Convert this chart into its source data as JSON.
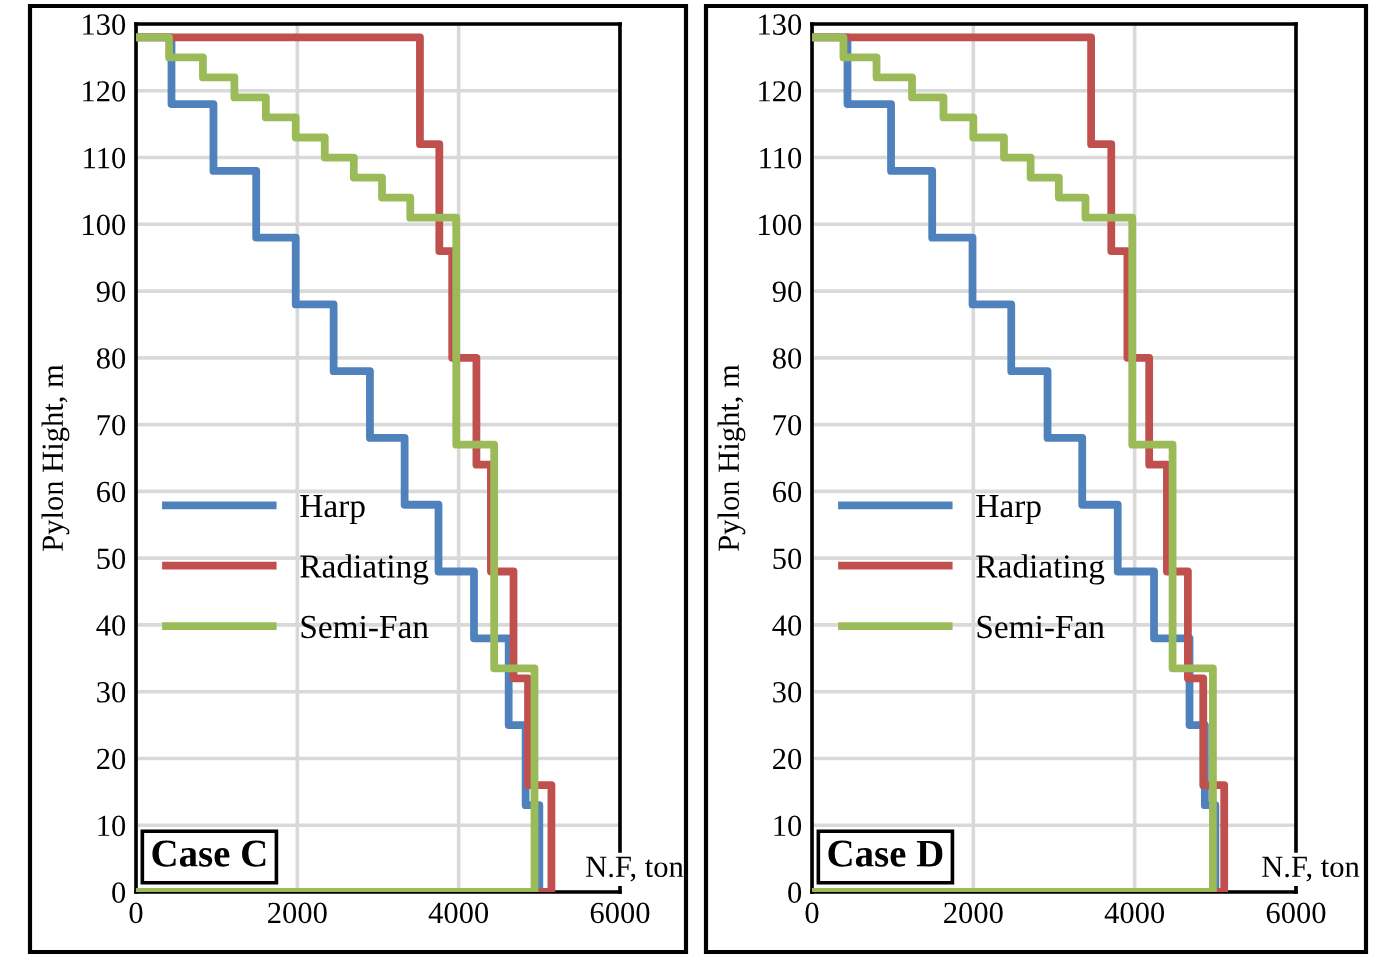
{
  "chart_data": [
    {
      "type": "line",
      "ylabel": "Pylon Hight, m",
      "xlabel": "N.F, ton",
      "annotations": [
        "Case C"
      ],
      "xlim": [
        0,
        6000
      ],
      "ylim": [
        0,
        130
      ],
      "xticks": [
        0,
        2000,
        4000,
        6000
      ],
      "yticks": [
        0,
        10,
        20,
        30,
        40,
        50,
        60,
        70,
        80,
        90,
        100,
        110,
        120,
        130
      ],
      "grid": true,
      "legend": "left",
      "line_style": "solid",
      "marker": "none",
      "series": [
        {
          "name": "Harp",
          "color": "#4f81bd",
          "x": [
            0,
            440,
            440,
            960,
            960,
            1490,
            1490,
            1980,
            1980,
            2450,
            2450,
            2900,
            2900,
            3330,
            3330,
            3750,
            3750,
            4190,
            4190,
            4620,
            4620,
            4830,
            4830,
            5000,
            5000,
            0
          ],
          "values": [
            128,
            128,
            118,
            118,
            108,
            108,
            98,
            98,
            88,
            88,
            78,
            78,
            68,
            68,
            58,
            58,
            48,
            48,
            38,
            38,
            25,
            25,
            13,
            13,
            0,
            0
          ]
        },
        {
          "name": "Radiating",
          "color": "#c0504d",
          "x": [
            0,
            3520,
            3520,
            3760,
            3760,
            3920,
            3920,
            4220,
            4220,
            4400,
            4400,
            4680,
            4680,
            4860,
            4860,
            5150,
            5150,
            0
          ],
          "values": [
            128,
            128,
            112,
            112,
            96,
            96,
            80,
            80,
            64,
            64,
            48,
            48,
            32,
            32,
            16,
            16,
            0,
            0
          ]
        },
        {
          "name": "Semi-Fan",
          "color": "#9bbb59",
          "x": [
            0,
            410,
            410,
            830,
            830,
            1220,
            1220,
            1610,
            1610,
            1980,
            1980,
            2340,
            2340,
            2700,
            2700,
            3050,
            3050,
            3400,
            3400,
            3970,
            3970,
            4440,
            4440,
            4940,
            4940,
            0
          ],
          "values": [
            128,
            128,
            125,
            125,
            122,
            122,
            119,
            119,
            116,
            116,
            113,
            113,
            110,
            110,
            107,
            107,
            104,
            104,
            101,
            101,
            67,
            67,
            33.5,
            33.5,
            0,
            0
          ]
        }
      ]
    },
    {
      "type": "line",
      "ylabel": "Pylon Hight, m",
      "xlabel": "N.F, ton",
      "annotations": [
        "Case D"
      ],
      "xlim": [
        0,
        6000
      ],
      "ylim": [
        0,
        130
      ],
      "xticks": [
        0,
        2000,
        4000,
        6000
      ],
      "yticks": [
        0,
        10,
        20,
        30,
        40,
        50,
        60,
        70,
        80,
        90,
        100,
        110,
        120,
        130
      ],
      "grid": true,
      "legend": "left",
      "line_style": "solid",
      "marker": "none",
      "series": [
        {
          "name": "Harp",
          "color": "#4f81bd",
          "x": [
            0,
            440,
            440,
            980,
            980,
            1490,
            1490,
            1990,
            1990,
            2470,
            2470,
            2920,
            2920,
            3350,
            3350,
            3790,
            3790,
            4240,
            4240,
            4680,
            4680,
            4870,
            4870,
            5000,
            5000,
            0
          ],
          "values": [
            128,
            128,
            118,
            118,
            108,
            108,
            98,
            98,
            88,
            88,
            78,
            78,
            68,
            68,
            58,
            58,
            48,
            48,
            38,
            38,
            25,
            25,
            13,
            13,
            0,
            0
          ]
        },
        {
          "name": "Radiating",
          "color": "#c0504d",
          "x": [
            0,
            3460,
            3460,
            3710,
            3710,
            3910,
            3910,
            4180,
            4180,
            4400,
            4400,
            4660,
            4660,
            4850,
            4850,
            5110,
            5110,
            0
          ],
          "values": [
            128,
            128,
            112,
            112,
            96,
            96,
            80,
            80,
            64,
            64,
            48,
            48,
            32,
            32,
            16,
            16,
            0,
            0
          ]
        },
        {
          "name": "Semi-Fan",
          "color": "#9bbb59",
          "x": [
            0,
            390,
            390,
            800,
            800,
            1240,
            1240,
            1630,
            1630,
            2000,
            2000,
            2380,
            2380,
            2710,
            2710,
            3060,
            3060,
            3390,
            3390,
            3970,
            3970,
            4470,
            4470,
            4970,
            4970,
            0
          ],
          "values": [
            128,
            128,
            125,
            125,
            122,
            122,
            119,
            119,
            116,
            116,
            113,
            113,
            110,
            110,
            107,
            107,
            104,
            104,
            101,
            101,
            67,
            67,
            33.5,
            33.5,
            0,
            0
          ]
        }
      ]
    }
  ]
}
